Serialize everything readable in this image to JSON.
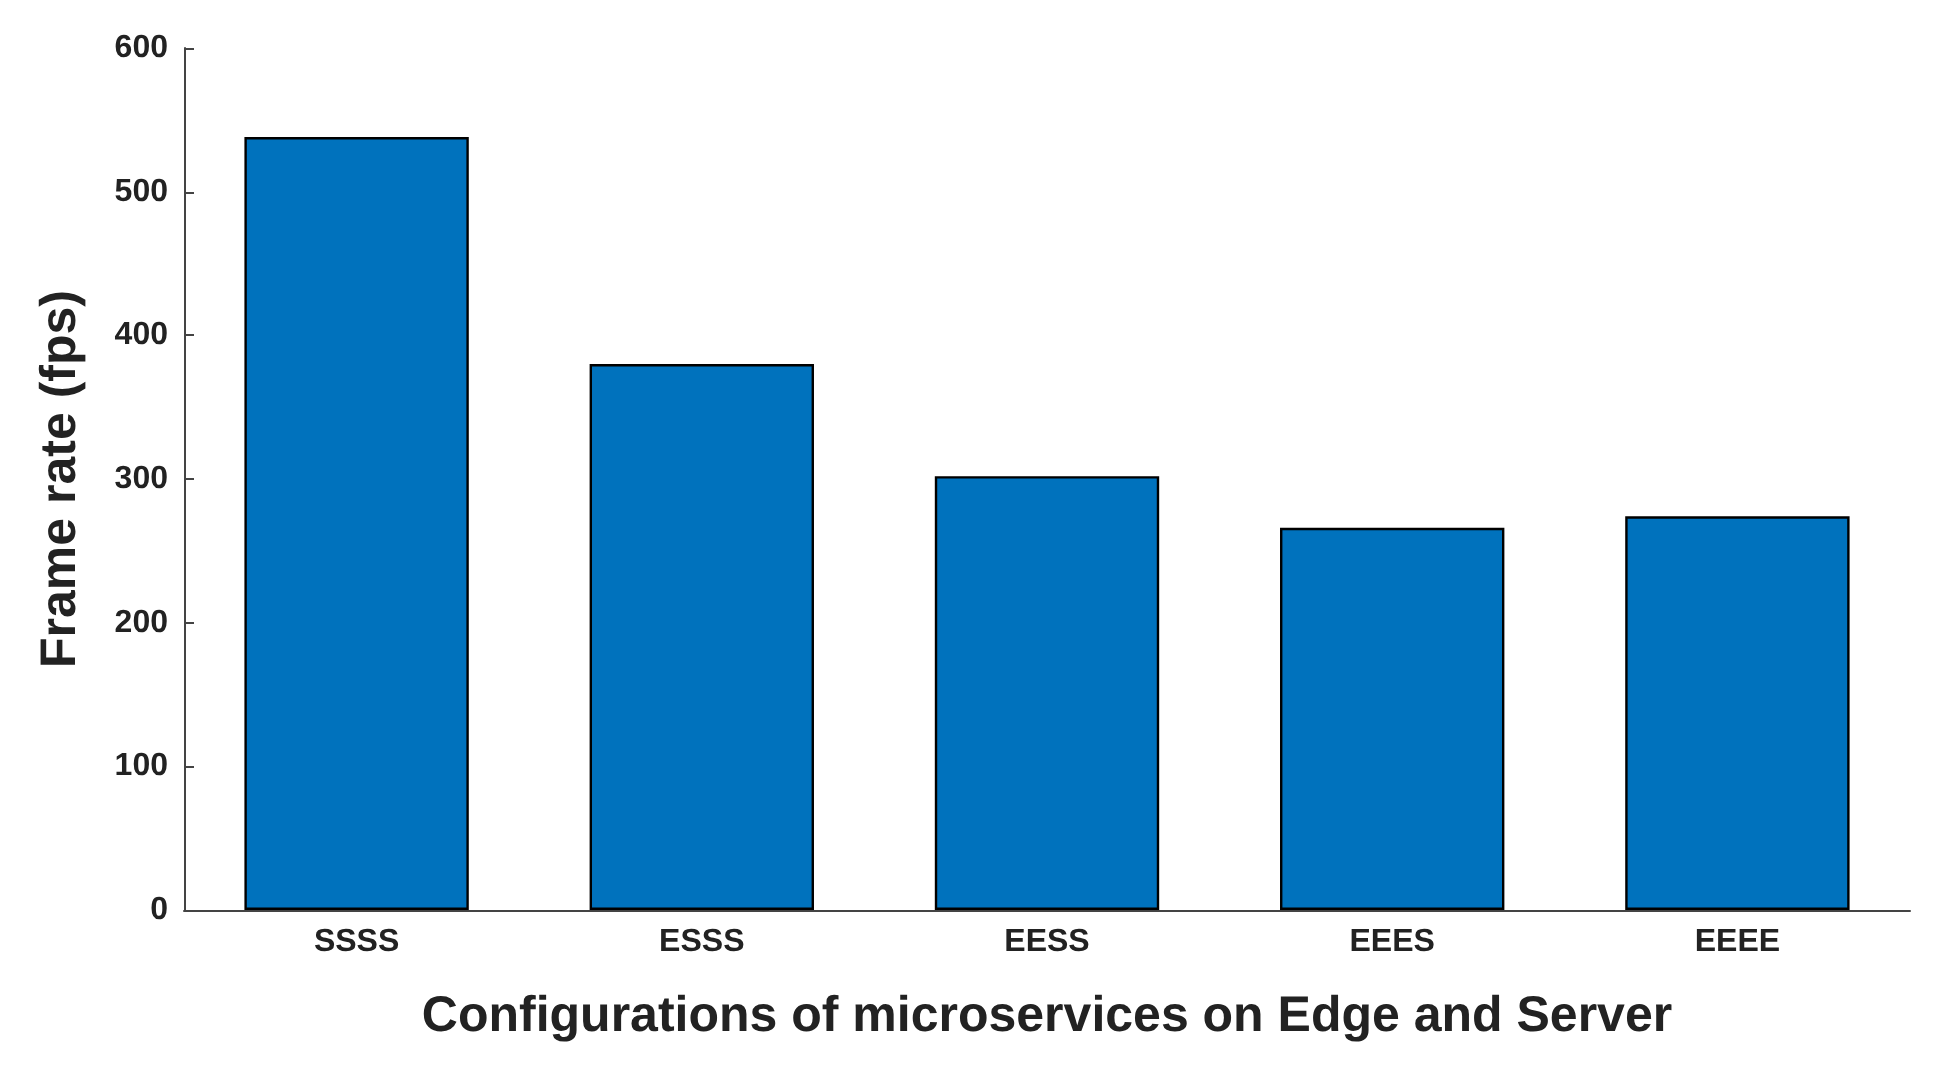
{
  "chart_data": {
    "type": "bar",
    "xlabel": "Configurations of microservices on Edge and Server",
    "ylabel": "Frame rate (fps)",
    "categories": [
      "SSSS",
      "ESSS",
      "EESS",
      "EEES",
      "EEEE"
    ],
    "values": [
      538,
      380,
      302,
      266,
      274
    ],
    "color": "#0072bd",
    "ylim": [
      0,
      600
    ],
    "yticks": [
      0,
      100,
      200,
      300,
      400,
      500,
      600
    ],
    "grid": false
  }
}
